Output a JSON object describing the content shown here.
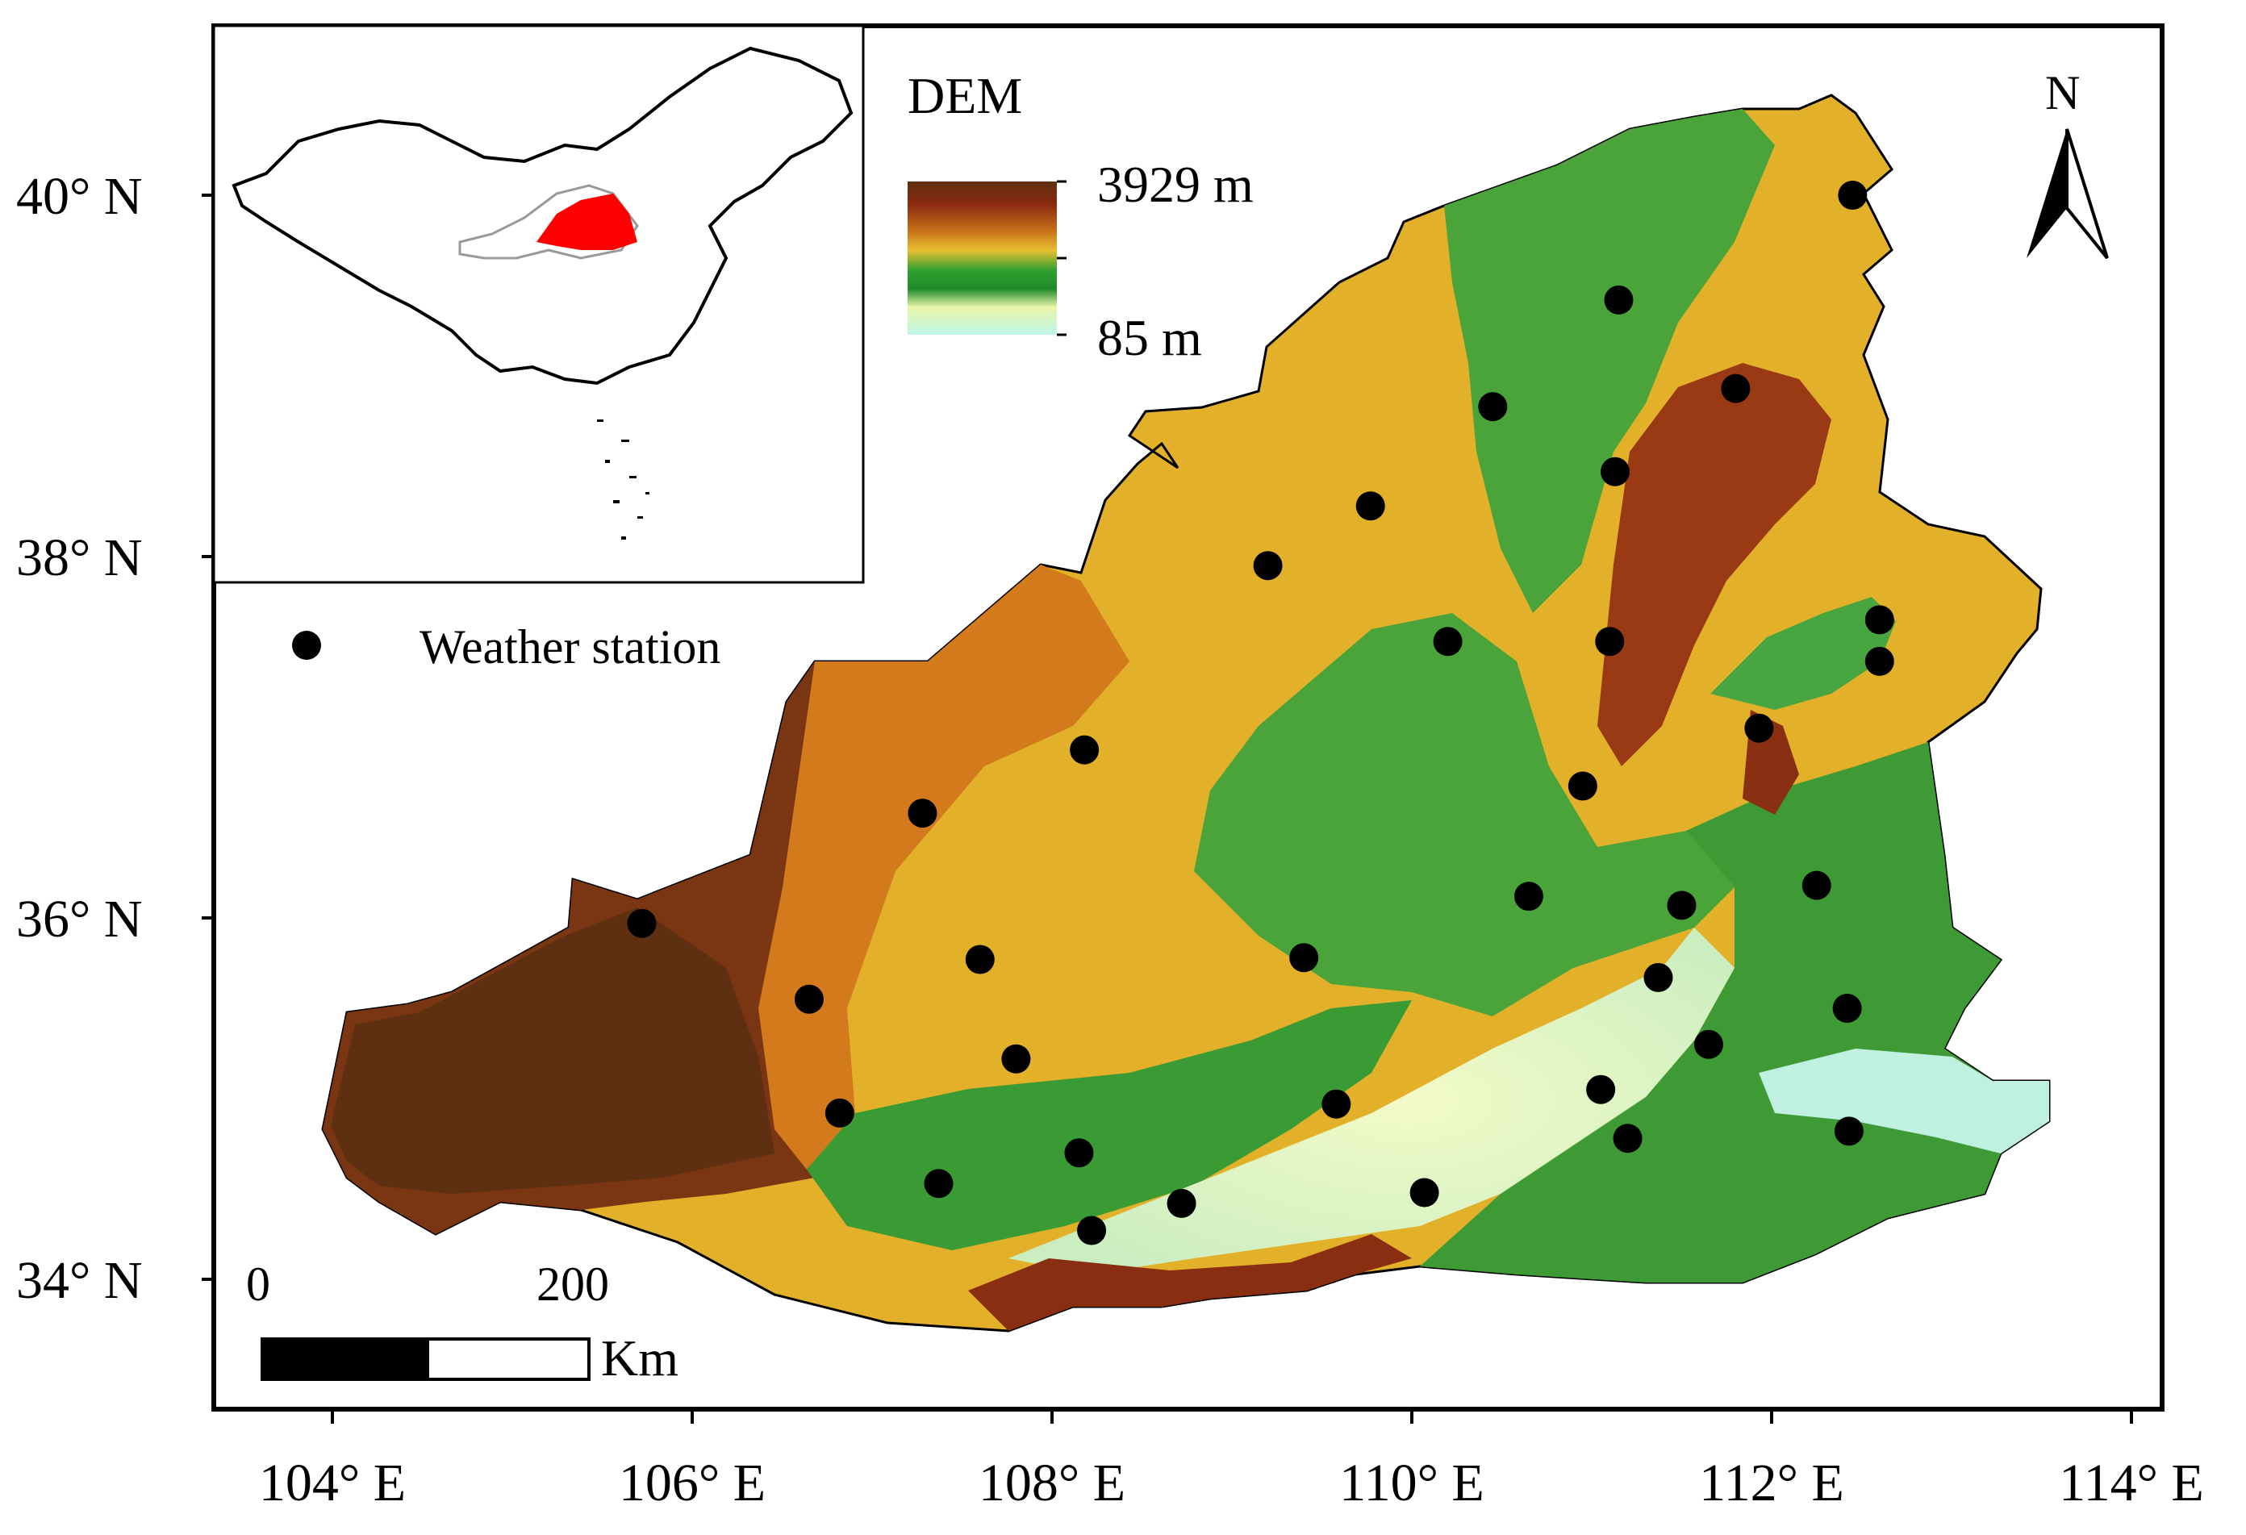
{
  "map": {
    "axes": {
      "lat_labels": [
        "40° N",
        "38° N",
        "36° N",
        "34° N"
      ],
      "lon_labels": [
        "104° E",
        "106° E",
        "108° E",
        "110° E",
        "112° E",
        "114° E"
      ]
    },
    "legend": {
      "dem_title": "DEM",
      "dem_max": "3929 m",
      "dem_min": "85 m",
      "station_label": "Weather station"
    },
    "north_arrow": {
      "label": "N"
    },
    "scale_bar": {
      "tick_start": "0",
      "tick_mid": "200",
      "unit": "Km"
    },
    "colors": {
      "dem_high": "#5e2f10",
      "dem_mid_high": "#c8701a",
      "dem_mid": "#e8c030",
      "dem_mid_low": "#30a030",
      "dem_low": "#bff5e8",
      "study_area_inset": "#ff0000",
      "station": "#000000"
    },
    "stations": [
      {
        "lon": 112.45,
        "lat": 40.0
      },
      {
        "lon": 111.15,
        "lat": 39.42
      },
      {
        "lon": 111.8,
        "lat": 38.93
      },
      {
        "lon": 110.45,
        "lat": 38.83
      },
      {
        "lon": 111.13,
        "lat": 38.47
      },
      {
        "lon": 109.77,
        "lat": 38.28
      },
      {
        "lon": 109.2,
        "lat": 37.95
      },
      {
        "lon": 110.2,
        "lat": 37.53
      },
      {
        "lon": 111.1,
        "lat": 37.53
      },
      {
        "lon": 112.6,
        "lat": 37.65
      },
      {
        "lon": 112.6,
        "lat": 37.42
      },
      {
        "lon": 111.93,
        "lat": 37.05
      },
      {
        "lon": 108.18,
        "lat": 36.93
      },
      {
        "lon": 107.28,
        "lat": 36.58
      },
      {
        "lon": 110.95,
        "lat": 36.73
      },
      {
        "lon": 110.65,
        "lat": 36.12
      },
      {
        "lon": 111.5,
        "lat": 36.07
      },
      {
        "lon": 112.25,
        "lat": 36.18
      },
      {
        "lon": 105.72,
        "lat": 35.97
      },
      {
        "lon": 109.4,
        "lat": 35.78
      },
      {
        "lon": 107.6,
        "lat": 35.77
      },
      {
        "lon": 106.65,
        "lat": 35.55
      },
      {
        "lon": 111.37,
        "lat": 35.67
      },
      {
        "lon": 112.42,
        "lat": 35.5
      },
      {
        "lon": 107.8,
        "lat": 35.22
      },
      {
        "lon": 111.65,
        "lat": 35.3
      },
      {
        "lon": 111.05,
        "lat": 35.05
      },
      {
        "lon": 106.82,
        "lat": 34.92
      },
      {
        "lon": 109.58,
        "lat": 34.97
      },
      {
        "lon": 112.43,
        "lat": 34.82
      },
      {
        "lon": 108.15,
        "lat": 34.7
      },
      {
        "lon": 111.2,
        "lat": 34.78
      },
      {
        "lon": 107.37,
        "lat": 34.53
      },
      {
        "lon": 108.72,
        "lat": 34.42
      },
      {
        "lon": 110.07,
        "lat": 34.48
      },
      {
        "lon": 108.22,
        "lat": 34.27
      }
    ]
  }
}
